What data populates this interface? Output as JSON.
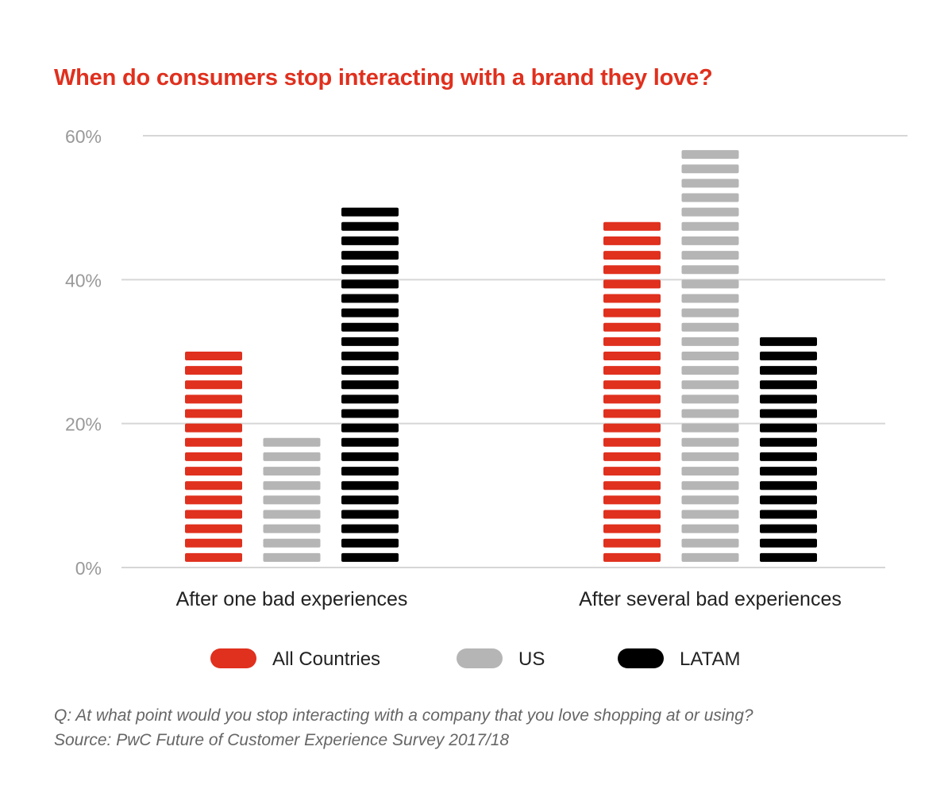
{
  "chart_data": {
    "type": "bar",
    "title": "When do consumers stop interacting with a brand they love?",
    "categories": [
      "After one bad experiences",
      "After several bad experiences"
    ],
    "series": [
      {
        "name": "All Countries",
        "color": "#e0301e",
        "values": [
          30,
          48
        ]
      },
      {
        "name": "US",
        "color": "#b5b5b5",
        "values": [
          18,
          58
        ]
      },
      {
        "name": "LATAM",
        "color": "#000000",
        "values": [
          50,
          32
        ]
      }
    ],
    "ylim": [
      0,
      60
    ],
    "yticks": [
      "0%",
      "20%",
      "40%",
      "60%"
    ],
    "ytick_values": [
      0,
      20,
      40,
      60
    ],
    "grid": true,
    "legend_placement": "bottom",
    "bar_style": "horizontal stripes"
  },
  "footnote": {
    "question": "Q: At what point would you stop interacting with a company that you love shopping at or using?",
    "source": "Source: PwC Future of Customer Experience Survey 2017/18"
  }
}
